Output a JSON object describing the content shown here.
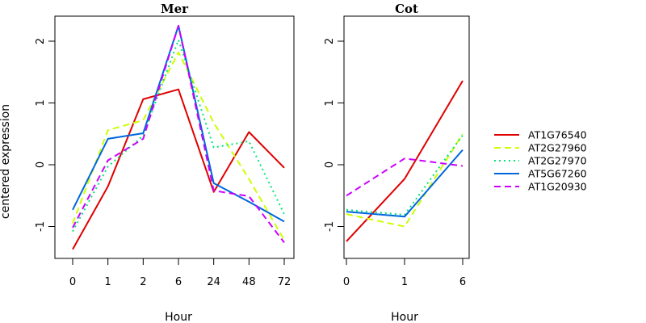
{
  "chart_data": {
    "type": "line",
    "ylabel": "centered expression",
    "ylim": [
      -1.5,
      2.4
    ],
    "yticks": [
      "-1",
      "0",
      "1",
      "2"
    ],
    "legend_position": "right",
    "legend": [
      {
        "name": "AT1G76540",
        "color": "#e00000",
        "dash": "solid"
      },
      {
        "name": "AT2G27960",
        "color": "#ccff00",
        "dash": "dashed"
      },
      {
        "name": "AT2G27970",
        "color": "#00e676",
        "dash": "dotted"
      },
      {
        "name": "AT5G67260",
        "color": "#0066dd",
        "dash": "solid"
      },
      {
        "name": "AT1G20930",
        "color": "#cc00ff",
        "dash": "dashed"
      }
    ],
    "panels": [
      {
        "title": "Mer",
        "xlabel": "Hour",
        "categories": [
          "0",
          "1",
          "2",
          "6",
          "24",
          "48",
          "72"
        ],
        "series": [
          {
            "name": "AT1G76540",
            "values": [
              -1.37,
              -0.35,
              1.06,
              1.22,
              -0.44,
              0.53,
              -0.05
            ]
          },
          {
            "name": "AT2G27960",
            "values": [
              -0.95,
              0.56,
              0.72,
              1.82,
              0.68,
              -0.23,
              -1.22
            ]
          },
          {
            "name": "AT2G27970",
            "values": [
              -1.08,
              -0.03,
              0.47,
              2.02,
              0.28,
              0.38,
              -0.8
            ]
          },
          {
            "name": "AT5G67260",
            "values": [
              -0.73,
              0.42,
              0.51,
              2.25,
              -0.3,
              -0.6,
              -0.92
            ]
          },
          {
            "name": "AT1G20930",
            "values": [
              -1.02,
              0.07,
              0.42,
              2.25,
              -0.42,
              -0.51,
              -1.26
            ]
          }
        ]
      },
      {
        "title": "Cot",
        "xlabel": "Hour",
        "categories": [
          "0",
          "1",
          "6"
        ],
        "series": [
          {
            "name": "AT1G76540",
            "values": [
              -1.24,
              -0.23,
              1.36
            ]
          },
          {
            "name": "AT2G27960",
            "values": [
              -0.8,
              -1.0,
              0.5
            ]
          },
          {
            "name": "AT2G27970",
            "values": [
              -0.73,
              -0.81,
              0.48
            ]
          },
          {
            "name": "AT5G67260",
            "values": [
              -0.76,
              -0.84,
              0.24
            ]
          },
          {
            "name": "AT1G20930",
            "values": [
              -0.5,
              0.1,
              -0.02
            ]
          }
        ]
      }
    ]
  }
}
